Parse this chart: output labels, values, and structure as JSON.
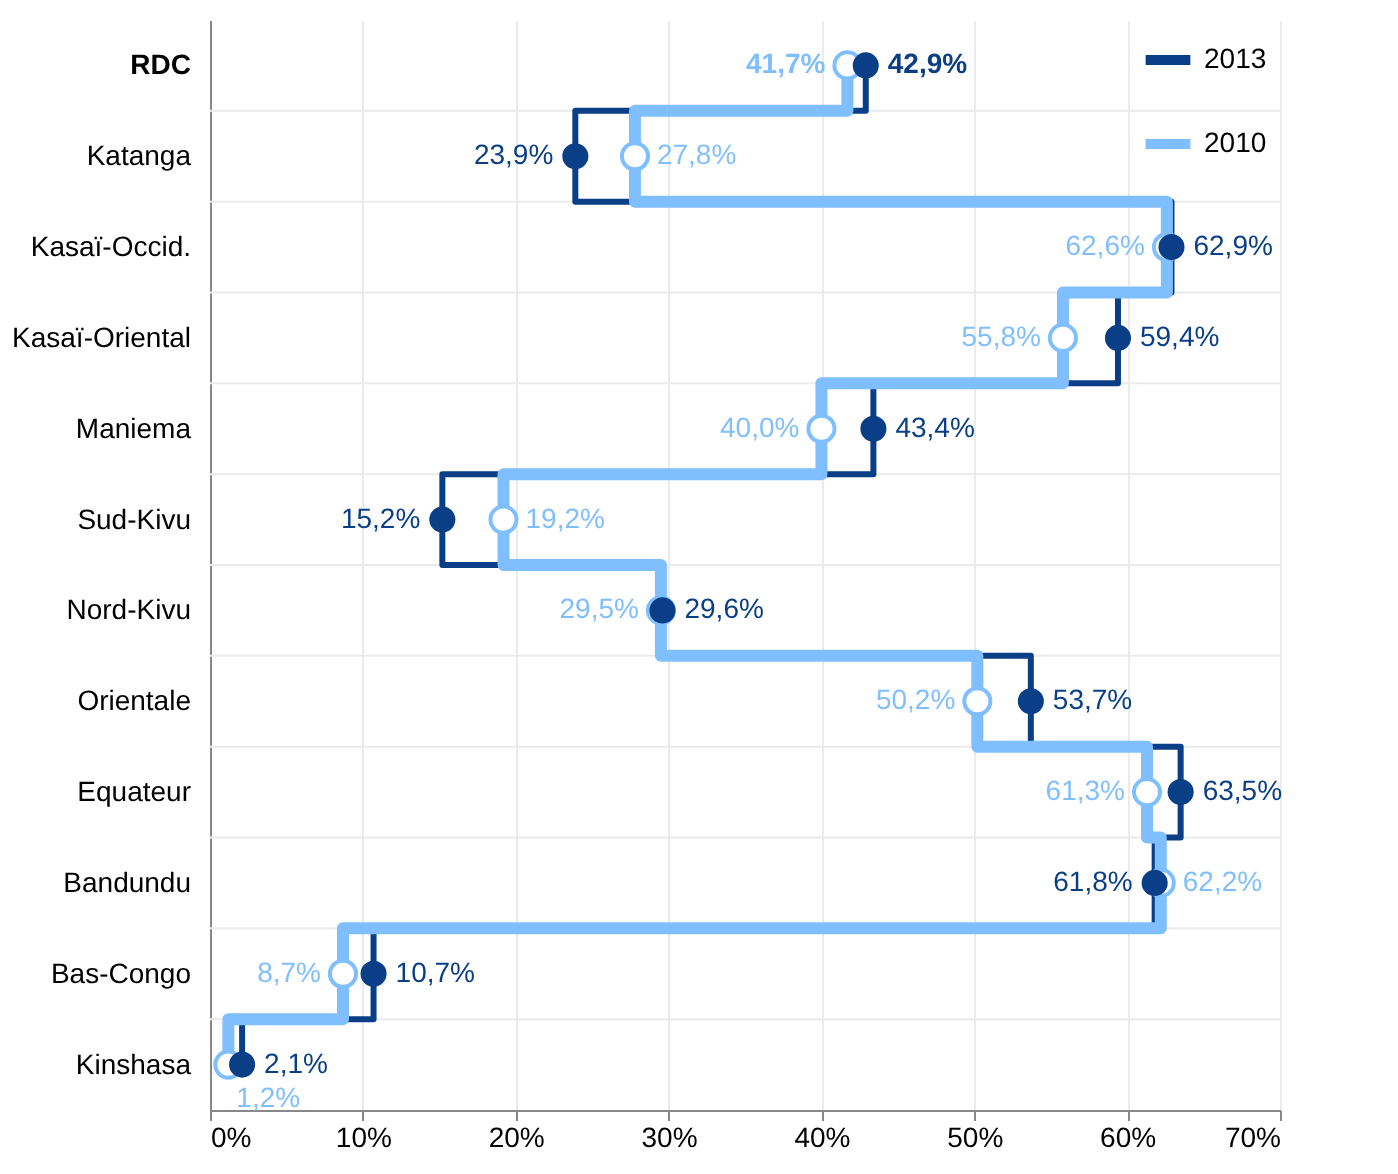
{
  "chart_data": {
    "type": "step",
    "orientation": "horizontal",
    "categories": [
      "RDC",
      "Katanga",
      "Kasaï-Occid.",
      "Kasaï-Oriental",
      "Maniema",
      "Sud-Kivu",
      "Nord-Kivu",
      "Orientale",
      "Equateur",
      "Bandundu",
      "Bas-Congo",
      "Kinshasa"
    ],
    "series": [
      {
        "name": "2013",
        "color": "#0a3f87",
        "values": [
          42.9,
          23.9,
          62.9,
          59.4,
          43.4,
          15.2,
          29.6,
          53.7,
          63.5,
          61.8,
          10.7,
          2.1
        ],
        "value_labels": [
          "42,9%",
          "23,9%",
          "62,9%",
          "59,4%",
          "43,4%",
          "15,2%",
          "29,6%",
          "53,7%",
          "63,5%",
          "61,8%",
          "10,7%",
          "2,1%"
        ]
      },
      {
        "name": "2010",
        "color": "#80bfff",
        "values": [
          41.7,
          27.8,
          62.6,
          55.8,
          40.0,
          19.2,
          29.5,
          50.2,
          61.3,
          62.2,
          8.7,
          1.2
        ],
        "value_labels": [
          "41,7%",
          "27,8%",
          "62,6%",
          "55,8%",
          "40,0%",
          "19,2%",
          "29,5%",
          "50,2%",
          "61,3%",
          "62,2%",
          "8,7%",
          "1,2%"
        ]
      }
    ],
    "xlim": [
      0,
      70
    ],
    "xticks": [
      {
        "value": 0,
        "label": "0%"
      },
      {
        "value": 10,
        "label": "10%"
      },
      {
        "value": 20,
        "label": "20%"
      },
      {
        "value": 30,
        "label": "30%"
      },
      {
        "value": 40,
        "label": "40%"
      },
      {
        "value": 50,
        "label": "50%"
      },
      {
        "value": 60,
        "label": "60%"
      },
      {
        "value": 70,
        "label": "70%"
      }
    ],
    "grid": true,
    "legend": "top right",
    "marker": "circle",
    "line_style": "solid"
  }
}
